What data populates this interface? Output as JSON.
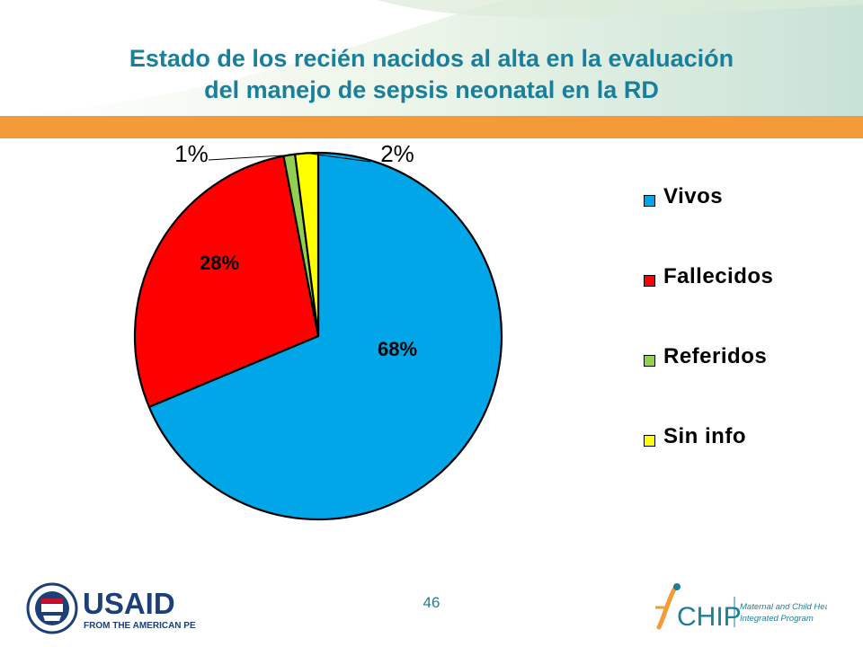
{
  "slide": {
    "title_line1": "Estado de los recién nacidos al alta en la evaluación",
    "title_line2": "del manejo de sepsis neonatal en la RD",
    "page_number": "46"
  },
  "colors": {
    "title": "#1a7f9a",
    "orange_bar": "#f29b38",
    "vivos": "#00a6e8",
    "fallecidos": "#ff0000",
    "referidos": "#92d050",
    "sin_info": "#ffff00"
  },
  "logos": {
    "usaid": {
      "text": "USAID",
      "subtitle": "FROM THE AMERICAN PEOPLE"
    },
    "mchip": {
      "text": "CHIP",
      "line1": "Maternal and Child Health",
      "line2": "Integrated Program"
    }
  },
  "chart_data": {
    "type": "pie",
    "title": "",
    "start_angle_deg": 0,
    "direction": "clockwise",
    "legend_position": "right",
    "slices": [
      {
        "key": "vivos",
        "label": "Vivos",
        "value": 68,
        "display": "68%",
        "color": "#00a6e8"
      },
      {
        "key": "fallecidos",
        "label": "Fallecidos",
        "value": 28,
        "display": "28%",
        "color": "#ff0000"
      },
      {
        "key": "referidos",
        "label": "Referidos",
        "value": 1,
        "display": "1%",
        "color": "#92d050"
      },
      {
        "key": "sin_info",
        "label": "Sin info",
        "value": 2,
        "display": "2%",
        "color": "#ffff00"
      }
    ]
  }
}
